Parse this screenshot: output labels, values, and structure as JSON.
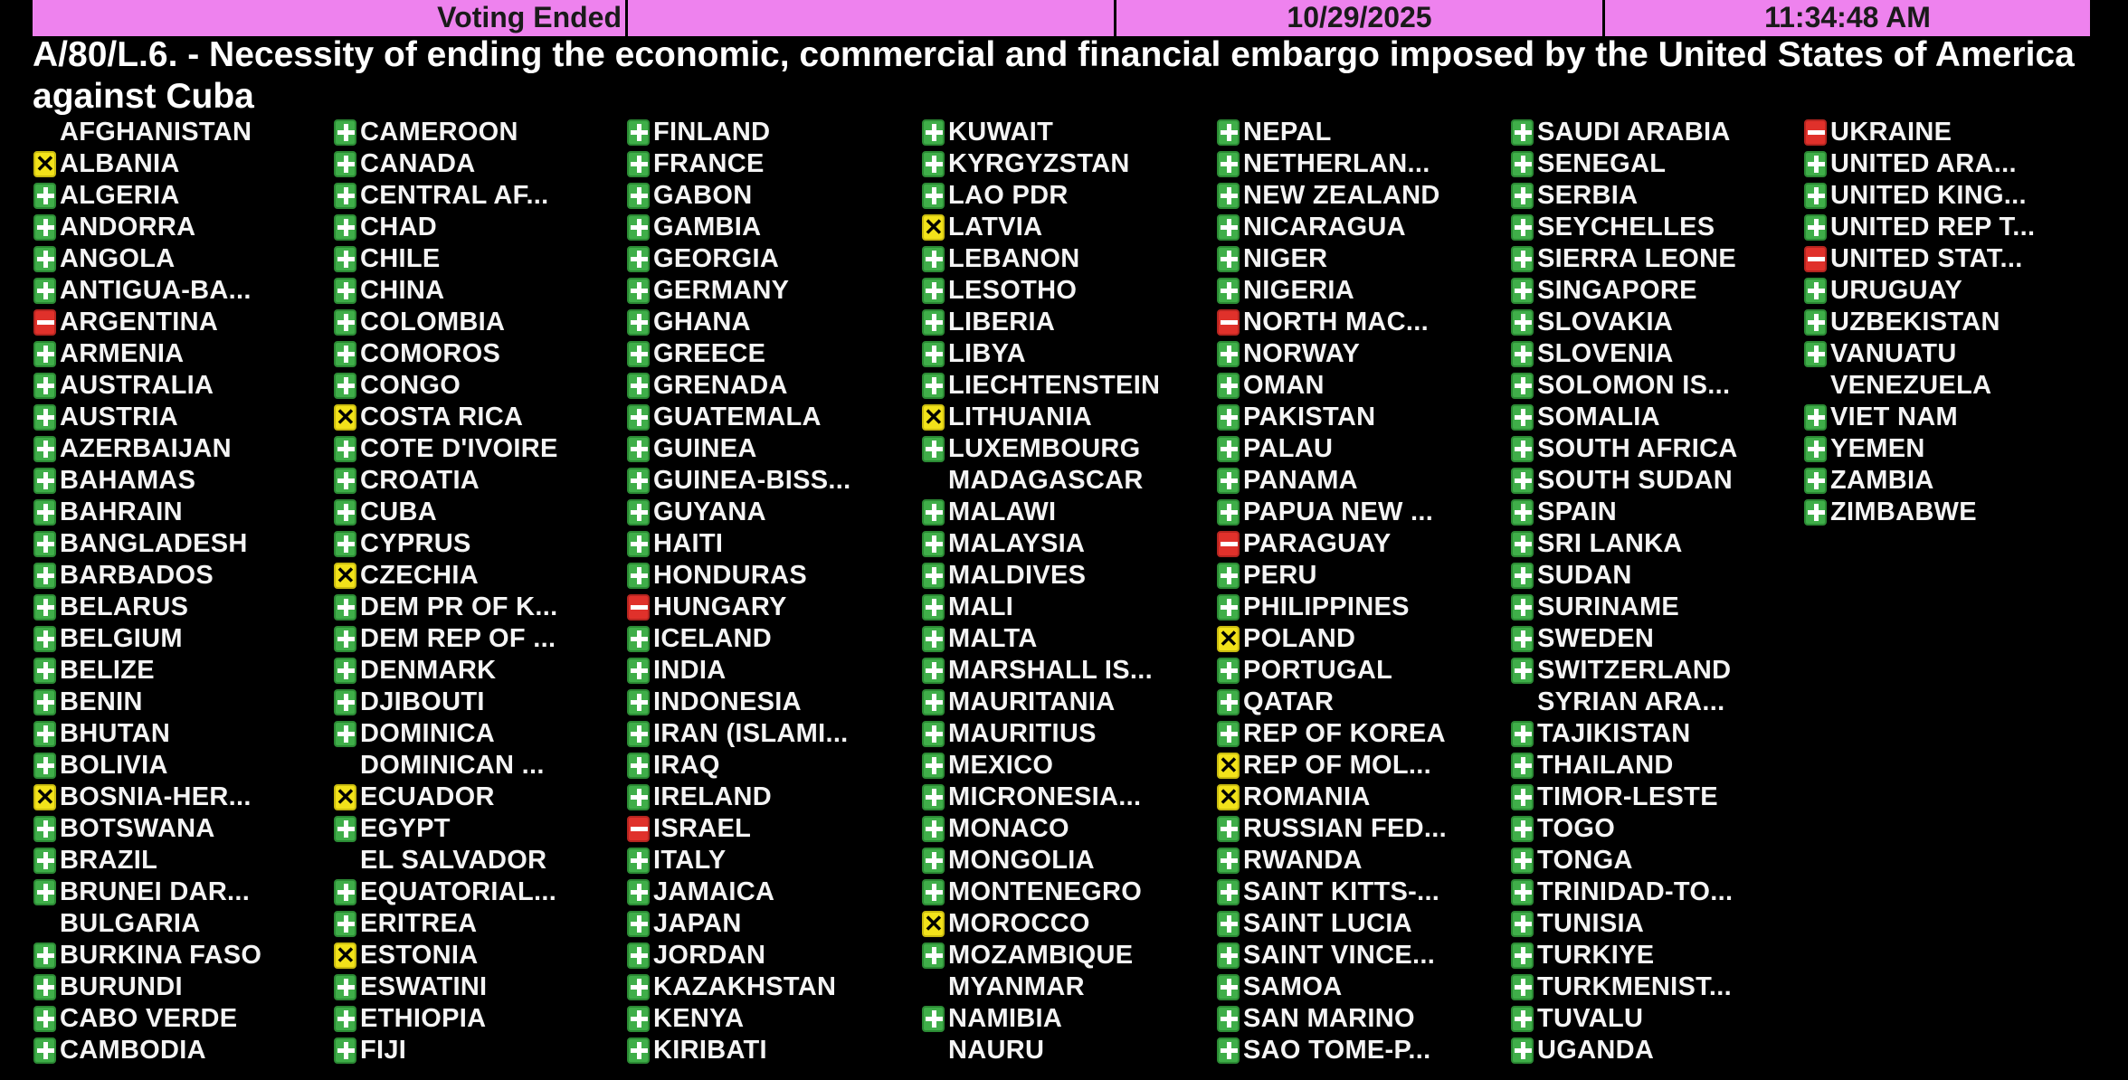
{
  "header": {
    "status": "Voting Ended",
    "blank": "",
    "date": "10/29/2025",
    "time": "11:34:48 AM"
  },
  "title": "A/80/L.6. - Necessity of ending the economic, commercial and financial embargo imposed by the United States of America against Cuba",
  "colors": {
    "header_bg": "#ee82ee",
    "yes": "#3fae49",
    "no": "#e0312b",
    "abstain": "#f2e21a"
  },
  "vote_legend": {
    "Y": "plus-icon (yes)",
    "N": "minus-icon (no)",
    "A": "x-icon (abstain)",
    "": "no vote"
  },
  "columns": [
    [
      [
        "AFGHANISTAN",
        ""
      ],
      [
        "ALBANIA",
        "A"
      ],
      [
        "ALGERIA",
        "Y"
      ],
      [
        "ANDORRA",
        "Y"
      ],
      [
        "ANGOLA",
        "Y"
      ],
      [
        "ANTIGUA-BA...",
        "Y"
      ],
      [
        "ARGENTINA",
        "N"
      ],
      [
        "ARMENIA",
        "Y"
      ],
      [
        "AUSTRALIA",
        "Y"
      ],
      [
        "AUSTRIA",
        "Y"
      ],
      [
        "AZERBAIJAN",
        "Y"
      ],
      [
        "BAHAMAS",
        "Y"
      ],
      [
        "BAHRAIN",
        "Y"
      ],
      [
        "BANGLADESH",
        "Y"
      ],
      [
        "BARBADOS",
        "Y"
      ],
      [
        "BELARUS",
        "Y"
      ],
      [
        "BELGIUM",
        "Y"
      ],
      [
        "BELIZE",
        "Y"
      ],
      [
        "BENIN",
        "Y"
      ],
      [
        "BHUTAN",
        "Y"
      ],
      [
        "BOLIVIA",
        "Y"
      ],
      [
        "BOSNIA-HER...",
        "A"
      ],
      [
        "BOTSWANA",
        "Y"
      ],
      [
        "BRAZIL",
        "Y"
      ],
      [
        "BRUNEI DAR...",
        "Y"
      ],
      [
        "BULGARIA",
        ""
      ],
      [
        "BURKINA FASO",
        "Y"
      ],
      [
        "BURUNDI",
        "Y"
      ],
      [
        "CABO VERDE",
        "Y"
      ],
      [
        "CAMBODIA",
        "Y"
      ]
    ],
    [
      [
        "CAMEROON",
        "Y"
      ],
      [
        "CANADA",
        "Y"
      ],
      [
        "CENTRAL AF...",
        "Y"
      ],
      [
        "CHAD",
        "Y"
      ],
      [
        "CHILE",
        "Y"
      ],
      [
        "CHINA",
        "Y"
      ],
      [
        "COLOMBIA",
        "Y"
      ],
      [
        "COMOROS",
        "Y"
      ],
      [
        "CONGO",
        "Y"
      ],
      [
        "COSTA RICA",
        "A"
      ],
      [
        "COTE D'IVOIRE",
        "Y"
      ],
      [
        "CROATIA",
        "Y"
      ],
      [
        "CUBA",
        "Y"
      ],
      [
        "CYPRUS",
        "Y"
      ],
      [
        "CZECHIA",
        "A"
      ],
      [
        "DEM PR OF K...",
        "Y"
      ],
      [
        "DEM REP OF ...",
        "Y"
      ],
      [
        "DENMARK",
        "Y"
      ],
      [
        "DJIBOUTI",
        "Y"
      ],
      [
        "DOMINICA",
        "Y"
      ],
      [
        "DOMINICAN ...",
        ""
      ],
      [
        "ECUADOR",
        "A"
      ],
      [
        "EGYPT",
        "Y"
      ],
      [
        "EL SALVADOR",
        ""
      ],
      [
        "EQUATORIAL...",
        "Y"
      ],
      [
        "ERITREA",
        "Y"
      ],
      [
        "ESTONIA",
        "A"
      ],
      [
        "ESWATINI",
        "Y"
      ],
      [
        "ETHIOPIA",
        "Y"
      ],
      [
        "FIJI",
        "Y"
      ]
    ],
    [
      [
        "FINLAND",
        "Y"
      ],
      [
        "FRANCE",
        "Y"
      ],
      [
        "GABON",
        "Y"
      ],
      [
        "GAMBIA",
        "Y"
      ],
      [
        "GEORGIA",
        "Y"
      ],
      [
        "GERMANY",
        "Y"
      ],
      [
        "GHANA",
        "Y"
      ],
      [
        "GREECE",
        "Y"
      ],
      [
        "GRENADA",
        "Y"
      ],
      [
        "GUATEMALA",
        "Y"
      ],
      [
        "GUINEA",
        "Y"
      ],
      [
        "GUINEA-BISS...",
        "Y"
      ],
      [
        "GUYANA",
        "Y"
      ],
      [
        "HAITI",
        "Y"
      ],
      [
        "HONDURAS",
        "Y"
      ],
      [
        "HUNGARY",
        "N"
      ],
      [
        "ICELAND",
        "Y"
      ],
      [
        "INDIA",
        "Y"
      ],
      [
        "INDONESIA",
        "Y"
      ],
      [
        "IRAN (ISLAMI...",
        "Y"
      ],
      [
        "IRAQ",
        "Y"
      ],
      [
        "IRELAND",
        "Y"
      ],
      [
        "ISRAEL",
        "N"
      ],
      [
        "ITALY",
        "Y"
      ],
      [
        "JAMAICA",
        "Y"
      ],
      [
        "JAPAN",
        "Y"
      ],
      [
        "JORDAN",
        "Y"
      ],
      [
        "KAZAKHSTAN",
        "Y"
      ],
      [
        "KENYA",
        "Y"
      ],
      [
        "KIRIBATI",
        "Y"
      ]
    ],
    [
      [
        "KUWAIT",
        "Y"
      ],
      [
        "KYRGYZSTAN",
        "Y"
      ],
      [
        "LAO PDR",
        "Y"
      ],
      [
        "LATVIA",
        "A"
      ],
      [
        "LEBANON",
        "Y"
      ],
      [
        "LESOTHO",
        "Y"
      ],
      [
        "LIBERIA",
        "Y"
      ],
      [
        "LIBYA",
        "Y"
      ],
      [
        "LIECHTENSTEIN",
        "Y"
      ],
      [
        "LITHUANIA",
        "A"
      ],
      [
        "LUXEMBOURG",
        "Y"
      ],
      [
        "MADAGASCAR",
        ""
      ],
      [
        "MALAWI",
        "Y"
      ],
      [
        "MALAYSIA",
        "Y"
      ],
      [
        "MALDIVES",
        "Y"
      ],
      [
        "MALI",
        "Y"
      ],
      [
        "MALTA",
        "Y"
      ],
      [
        "MARSHALL IS...",
        "Y"
      ],
      [
        "MAURITANIA",
        "Y"
      ],
      [
        "MAURITIUS",
        "Y"
      ],
      [
        "MEXICO",
        "Y"
      ],
      [
        "MICRONESIA...",
        "Y"
      ],
      [
        "MONACO",
        "Y"
      ],
      [
        "MONGOLIA",
        "Y"
      ],
      [
        "MONTENEGRO",
        "Y"
      ],
      [
        "MOROCCO",
        "A"
      ],
      [
        "MOZAMBIQUE",
        "Y"
      ],
      [
        "MYANMAR",
        ""
      ],
      [
        "NAMIBIA",
        "Y"
      ],
      [
        "NAURU",
        ""
      ]
    ],
    [
      [
        "NEPAL",
        "Y"
      ],
      [
        "NETHERLAN...",
        "Y"
      ],
      [
        "NEW ZEALAND",
        "Y"
      ],
      [
        "NICARAGUA",
        "Y"
      ],
      [
        "NIGER",
        "Y"
      ],
      [
        "NIGERIA",
        "Y"
      ],
      [
        "NORTH MAC...",
        "N"
      ],
      [
        "NORWAY",
        "Y"
      ],
      [
        "OMAN",
        "Y"
      ],
      [
        "PAKISTAN",
        "Y"
      ],
      [
        "PALAU",
        "Y"
      ],
      [
        "PANAMA",
        "Y"
      ],
      [
        "PAPUA NEW ...",
        "Y"
      ],
      [
        "PARAGUAY",
        "N"
      ],
      [
        "PERU",
        "Y"
      ],
      [
        "PHILIPPINES",
        "Y"
      ],
      [
        "POLAND",
        "A"
      ],
      [
        "PORTUGAL",
        "Y"
      ],
      [
        "QATAR",
        "Y"
      ],
      [
        "REP OF KOREA",
        "Y"
      ],
      [
        "REP OF MOL...",
        "A"
      ],
      [
        "ROMANIA",
        "A"
      ],
      [
        "RUSSIAN FED...",
        "Y"
      ],
      [
        "RWANDA",
        "Y"
      ],
      [
        "SAINT KITTS-...",
        "Y"
      ],
      [
        "SAINT LUCIA",
        "Y"
      ],
      [
        "SAINT VINCE...",
        "Y"
      ],
      [
        "SAMOA",
        "Y"
      ],
      [
        "SAN MARINO",
        "Y"
      ],
      [
        "SAO TOME-P...",
        "Y"
      ]
    ],
    [
      [
        "SAUDI ARABIA",
        "Y"
      ],
      [
        "SENEGAL",
        "Y"
      ],
      [
        "SERBIA",
        "Y"
      ],
      [
        "SEYCHELLES",
        "Y"
      ],
      [
        "SIERRA LEONE",
        "Y"
      ],
      [
        "SINGAPORE",
        "Y"
      ],
      [
        "SLOVAKIA",
        "Y"
      ],
      [
        "SLOVENIA",
        "Y"
      ],
      [
        "SOLOMON IS...",
        "Y"
      ],
      [
        "SOMALIA",
        "Y"
      ],
      [
        "SOUTH AFRICA",
        "Y"
      ],
      [
        "SOUTH SUDAN",
        "Y"
      ],
      [
        "SPAIN",
        "Y"
      ],
      [
        "SRI LANKA",
        "Y"
      ],
      [
        "SUDAN",
        "Y"
      ],
      [
        "SURINAME",
        "Y"
      ],
      [
        "SWEDEN",
        "Y"
      ],
      [
        "SWITZERLAND",
        "Y"
      ],
      [
        "SYRIAN ARA...",
        ""
      ],
      [
        "TAJIKISTAN",
        "Y"
      ],
      [
        "THAILAND",
        "Y"
      ],
      [
        "TIMOR-LESTE",
        "Y"
      ],
      [
        "TOGO",
        "Y"
      ],
      [
        "TONGA",
        "Y"
      ],
      [
        "TRINIDAD-TO...",
        "Y"
      ],
      [
        "TUNISIA",
        "Y"
      ],
      [
        "TURKIYE",
        "Y"
      ],
      [
        "TURKMENIST...",
        "Y"
      ],
      [
        "TUVALU",
        "Y"
      ],
      [
        "UGANDA",
        "Y"
      ]
    ],
    [
      [
        "UKRAINE",
        "N"
      ],
      [
        "UNITED ARA...",
        "Y"
      ],
      [
        "UNITED KING...",
        "Y"
      ],
      [
        "UNITED REP T...",
        "Y"
      ],
      [
        "UNITED STAT...",
        "N"
      ],
      [
        "URUGUAY",
        "Y"
      ],
      [
        "UZBEKISTAN",
        "Y"
      ],
      [
        "VANUATU",
        "Y"
      ],
      [
        "VENEZUELA",
        ""
      ],
      [
        "VIET NAM",
        "Y"
      ],
      [
        "YEMEN",
        "Y"
      ],
      [
        "ZAMBIA",
        "Y"
      ],
      [
        "ZIMBABWE",
        "Y"
      ]
    ]
  ]
}
